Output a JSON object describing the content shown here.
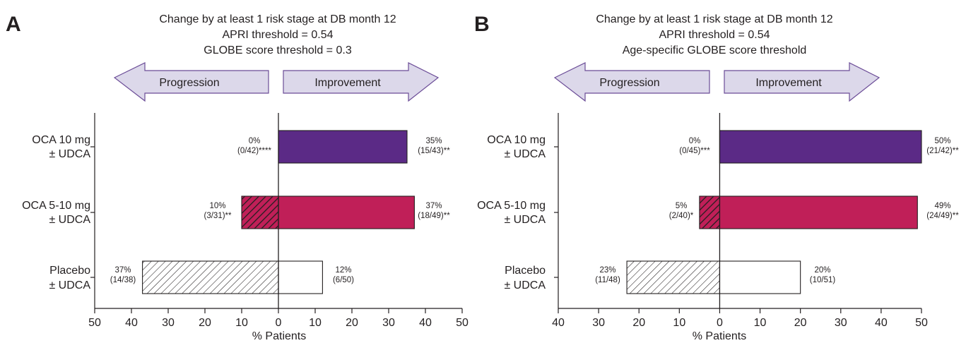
{
  "colors": {
    "oca10": "#5b2a86",
    "oca5_10": "#c01f58",
    "placebo": "#ffffff",
    "arrow_fill": "#dcd8ea",
    "arrow_stroke": "#6b4c97",
    "axis": "#231f20"
  },
  "chart_data": [
    {
      "type": "bar",
      "orientation": "horizontal-diverging",
      "panel_label": "A",
      "title_lines": [
        "Change by at least 1 risk stage at DB month 12",
        "APRI threshold = 0.54",
        "GLOBE score threshold = 0.3"
      ],
      "arrow_left_label": "Progression",
      "arrow_right_label": "Improvement",
      "categories": [
        [
          "OCA 10 mg",
          "± UDCA"
        ],
        [
          "OCA 5-10 mg",
          "± UDCA"
        ],
        [
          "Placebo",
          "± UDCA"
        ]
      ],
      "series": [
        {
          "name": "Progression",
          "values": [
            0,
            10,
            37
          ],
          "labels": [
            [
              "0%",
              "(0/42)****"
            ],
            [
              "10%",
              "(3/31)**"
            ],
            [
              "37%",
              "(14/38)"
            ]
          ]
        },
        {
          "name": "Improvement",
          "values": [
            35,
            37,
            12
          ],
          "labels": [
            [
              "35%",
              "(15/43)**"
            ],
            [
              "37%",
              "(18/49)**"
            ],
            [
              "12%",
              "(6/50)"
            ]
          ]
        }
      ],
      "xlim": [
        -50,
        50
      ],
      "xticks": [
        -50,
        -40,
        -30,
        -20,
        -10,
        0,
        10,
        20,
        30,
        40,
        50
      ],
      "xtick_labels": [
        "50",
        "40",
        "30",
        "20",
        "10",
        "0",
        "10",
        "20",
        "30",
        "40",
        "50"
      ],
      "xlabel": "% Patients",
      "ylabel": "",
      "grid": false,
      "legend": "none"
    },
    {
      "type": "bar",
      "orientation": "horizontal-diverging",
      "panel_label": "B",
      "title_lines": [
        "Change by at least 1 risk stage at DB month 12",
        "APRI threshold = 0.54",
        "Age-specific GLOBE score threshold"
      ],
      "arrow_left_label": "Progression",
      "arrow_right_label": "Improvement",
      "categories": [
        [
          "OCA 10 mg",
          "± UDCA"
        ],
        [
          "OCA 5-10 mg",
          "± UDCA"
        ],
        [
          "Placebo",
          "± UDCA"
        ]
      ],
      "series": [
        {
          "name": "Progression",
          "values": [
            0,
            5,
            23
          ],
          "labels": [
            [
              "0%",
              "(0/45)***"
            ],
            [
              "5%",
              "(2/40)*"
            ],
            [
              "23%",
              "(11/48)"
            ]
          ]
        },
        {
          "name": "Improvement",
          "values": [
            50,
            49,
            20
          ],
          "labels": [
            [
              "50%",
              "(21/42)**"
            ],
            [
              "49%",
              "(24/49)**"
            ],
            [
              "20%",
              "(10/51)"
            ]
          ]
        }
      ],
      "xlim": [
        -40,
        50
      ],
      "xticks": [
        -40,
        -30,
        -20,
        -10,
        0,
        10,
        20,
        30,
        40,
        50
      ],
      "xtick_labels": [
        "40",
        "30",
        "20",
        "10",
        "0",
        "10",
        "20",
        "30",
        "40",
        "50"
      ],
      "xlabel": "% Patients",
      "ylabel": "",
      "grid": false,
      "legend": "none"
    }
  ]
}
